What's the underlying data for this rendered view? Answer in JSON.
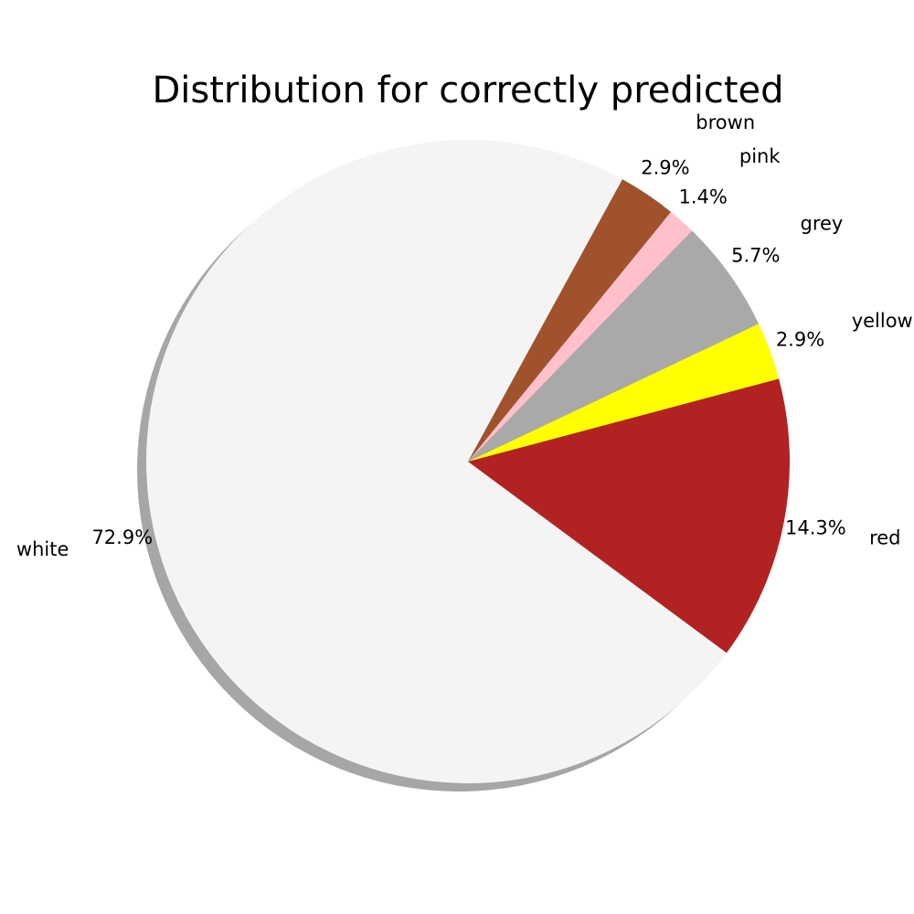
{
  "chart_data": {
    "type": "pie",
    "title": "Distribution for correctly predicted",
    "shadow": true,
    "legend": "none",
    "slices": [
      {
        "label": "red",
        "value": 14.3,
        "pct_label": "14.3%",
        "color": "#b22222"
      },
      {
        "label": "yellow",
        "value": 2.9,
        "pct_label": "2.9%",
        "color": "#ffff00"
      },
      {
        "label": "grey",
        "value": 5.7,
        "pct_label": "5.7%",
        "color": "#a9a9a9"
      },
      {
        "label": "pink",
        "value": 1.4,
        "pct_label": "1.4%",
        "color": "#ffc0cb"
      },
      {
        "label": "brown",
        "value": 2.9,
        "pct_label": "2.9%",
        "color": "#a0522d"
      },
      {
        "label": "white",
        "value": 72.9,
        "pct_label": "72.9%",
        "color": "#f4f4f4"
      }
    ]
  }
}
